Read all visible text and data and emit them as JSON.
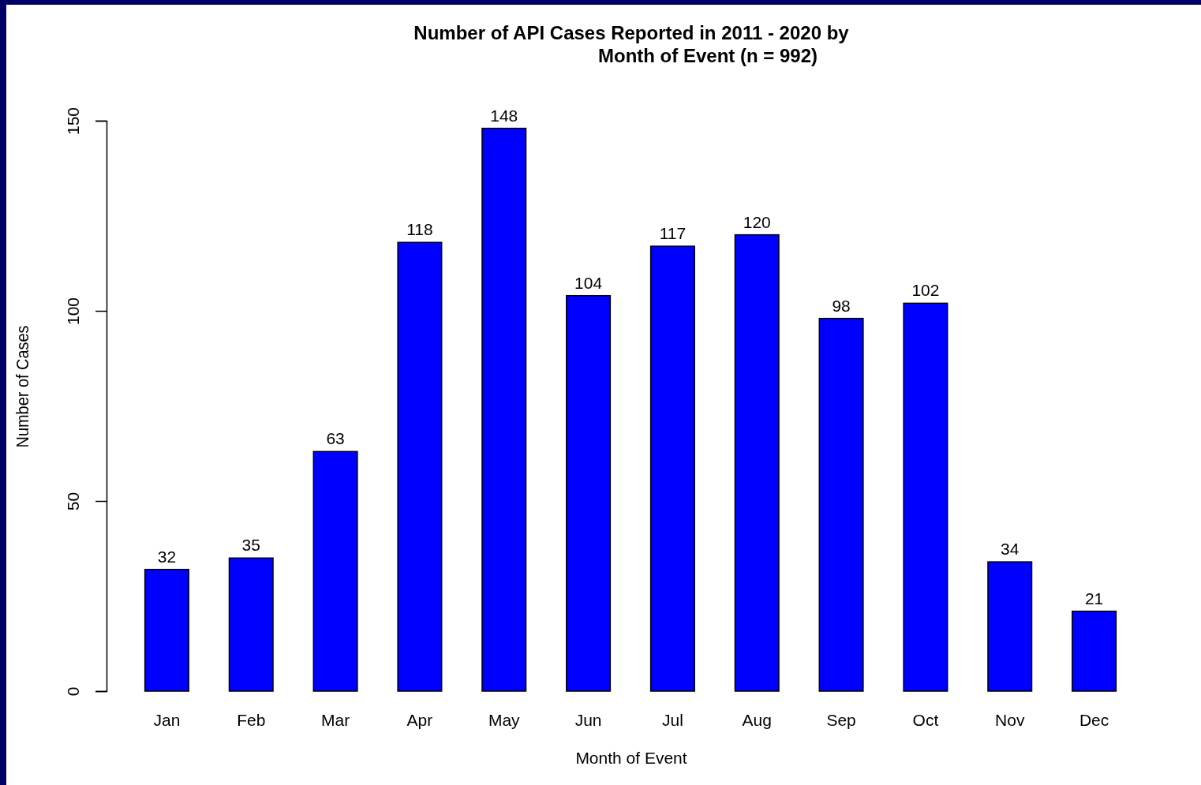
{
  "chart_data": {
    "type": "bar",
    "title": "Number of API Cases Reported in 2011 - 2020 by\nMonth of Event (n = 992)",
    "xlabel": "Month of Event",
    "ylabel": "Number of Cases",
    "categories": [
      "Jan",
      "Feb",
      "Mar",
      "Apr",
      "May",
      "Jun",
      "Jul",
      "Aug",
      "Sep",
      "Oct",
      "Nov",
      "Dec"
    ],
    "values": [
      32,
      35,
      63,
      118,
      148,
      104,
      117,
      120,
      98,
      102,
      34,
      21
    ],
    "color": "#0000ff",
    "ylim": [
      0,
      150
    ],
    "yticks": [
      0,
      50,
      100,
      150
    ],
    "data_labels": true,
    "grid": false
  }
}
